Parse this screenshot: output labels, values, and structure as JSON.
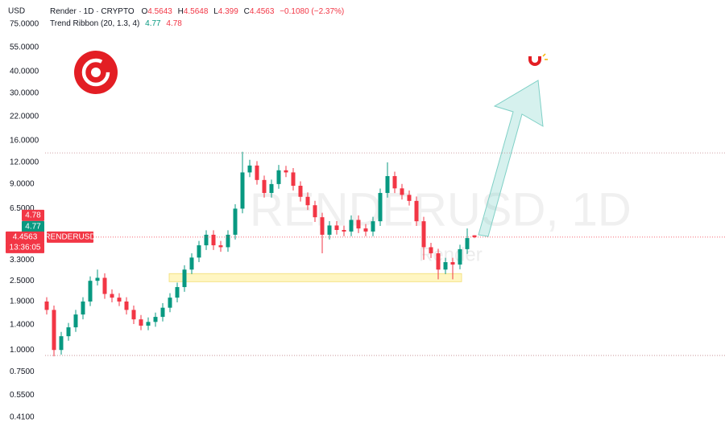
{
  "chart_data": {
    "type": "candlestick",
    "currency": "USD",
    "symbol": "Render · 1D · CRYPTO",
    "ohlc_labels": [
      "O",
      "H",
      "L",
      "C"
    ],
    "change_label": "−0.1080 (−2.37%)",
    "ribbon": {
      "name": "Trend Ribbon (20, 1.3, 4)",
      "values": [
        4.77,
        4.78
      ],
      "colors": [
        "#089981",
        "#f23645"
      ]
    },
    "ticker": "RENDERUSD",
    "countdown": "13:36:05",
    "watermark": "RENDERUSD, 1D",
    "watermark_sub": "Render",
    "up_color": "#089981",
    "down_color": "#f23645",
    "log_scale": true,
    "ylim": [
      0.342,
      103
    ],
    "yticks": [
      {
        "value": 75,
        "label": "75.0000"
      },
      {
        "value": 55,
        "label": "55.0000"
      },
      {
        "value": 40,
        "label": "40.0000"
      },
      {
        "value": 30,
        "label": "30.0000"
      },
      {
        "value": 22,
        "label": "22.0000"
      },
      {
        "value": 16,
        "label": "16.0000"
      },
      {
        "value": 12,
        "label": "12.0000"
      },
      {
        "value": 9,
        "label": "9.0000"
      },
      {
        "value": 6.5,
        "label": "6.5000"
      },
      {
        "value": 3.3,
        "label": "3.3000"
      },
      {
        "value": 2.5,
        "label": "2.5000"
      },
      {
        "value": 1.9,
        "label": "1.9000"
      },
      {
        "value": 1.4,
        "label": "1.4000"
      },
      {
        "value": 1,
        "label": "1.0000"
      },
      {
        "value": 0.75,
        "label": "0.7500"
      },
      {
        "value": 0.55,
        "label": "0.5500"
      },
      {
        "value": 0.41,
        "label": "0.4100"
      }
    ],
    "levels": [
      13.6,
      0.93
    ],
    "zone": [
      2.47,
      2.75
    ],
    "open": [
      1.9,
      1.7,
      1.0,
      1.2,
      1.35,
      1.6,
      1.9,
      2.5,
      2.6,
      2.1,
      2.0,
      1.9,
      1.7,
      1.5,
      1.38,
      1.45,
      1.55,
      1.75,
      2.0,
      2.3,
      2.9,
      3.4,
      4.0,
      4.6,
      4.0,
      3.9,
      4.6,
      6.5,
      10.5,
      11.5,
      9.5,
      8.0,
      9.0,
      10.8,
      10.5,
      8.8,
      7.6,
      6.8,
      5.8,
      4.6,
      5.2,
      4.9,
      4.8,
      5.6,
      5.0,
      4.8,
      5.5,
      8.0,
      10.0,
      8.5,
      7.8,
      7.2,
      5.5,
      3.9,
      3.6,
      2.9,
      3.2,
      3.1,
      3.8,
      4.5643
    ],
    "high": [
      2.01,
      1.8,
      1.27,
      1.43,
      1.7,
      2.01,
      2.65,
      2.9,
      2.76,
      2.23,
      2.12,
      2.01,
      1.8,
      1.59,
      1.54,
      1.64,
      1.86,
      2.12,
      2.44,
      3.07,
      3.6,
      4.24,
      4.88,
      4.88,
      4.24,
      4.88,
      6.89,
      13.8,
      12.4,
      12.2,
      10.07,
      9.54,
      11.6,
      11.45,
      11.13,
      9.33,
      8.06,
      7.21,
      6.15,
      5.51,
      5.51,
      5.19,
      5.94,
      5.94,
      5.3,
      5.83,
      8.48,
      12.0,
      10.6,
      9.01,
      8.27,
      7.63,
      5.83,
      4.13,
      3.82,
      3.39,
      3.39,
      4.03,
      5.0,
      4.5648
    ],
    "low": [
      1.6,
      0.92,
      0.94,
      1.13,
      1.27,
      1.5,
      1.79,
      2.35,
      1.97,
      1.88,
      1.79,
      1.6,
      1.41,
      1.3,
      1.3,
      1.36,
      1.46,
      1.65,
      1.88,
      2.16,
      2.73,
      3.2,
      3.76,
      3.76,
      3.67,
      3.67,
      4.32,
      6.11,
      9.87,
      8.93,
      7.52,
      7.52,
      8.46,
      9.87,
      8.27,
      7.14,
      6.39,
      5.45,
      3.6,
      4.32,
      4.61,
      4.51,
      4.51,
      4.7,
      4.51,
      4.51,
      5.17,
      7.52,
      7.99,
      7.33,
      6.77,
      5.17,
      3.3,
      3.38,
      2.55,
      2.73,
      2.55,
      2.91,
      3.57,
      4.399
    ],
    "close": [
      1.7,
      1.0,
      1.2,
      1.35,
      1.6,
      1.9,
      2.5,
      2.6,
      2.1,
      2.0,
      1.9,
      1.7,
      1.5,
      1.38,
      1.45,
      1.55,
      1.75,
      2.0,
      2.3,
      2.9,
      3.4,
      4.0,
      4.6,
      4.0,
      3.9,
      4.6,
      6.5,
      10.5,
      11.5,
      9.5,
      8.0,
      9.0,
      10.8,
      10.5,
      8.8,
      7.6,
      6.8,
      5.8,
      4.6,
      5.2,
      4.9,
      4.8,
      5.6,
      5.0,
      4.8,
      5.5,
      8.0,
      10.0,
      8.5,
      7.8,
      7.2,
      5.5,
      3.9,
      3.6,
      2.9,
      3.2,
      3.1,
      3.8,
      4.4,
      4.4563
    ]
  }
}
